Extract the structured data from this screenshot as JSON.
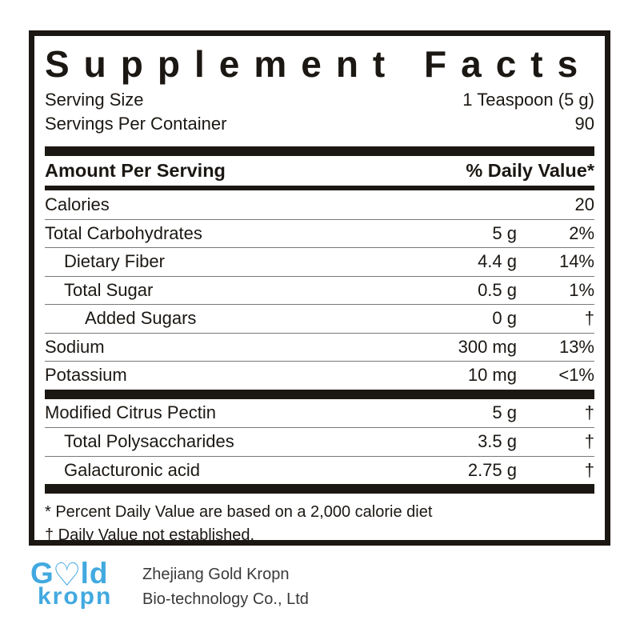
{
  "colors": {
    "ink": "#1b1713",
    "logo_blue": "#42a9e0"
  },
  "panel": {
    "title": "Supplement Facts",
    "serving_size_label": "Serving Size",
    "serving_size_value": "1 Teaspoon (5 g)",
    "servings_label": "Servings Per Container",
    "servings_value": "90",
    "header_left": "Amount Per Serving",
    "header_right": "% Daily Value*",
    "rows": [
      {
        "name": "Calories",
        "amount": "",
        "dv": "20"
      },
      {
        "name": "Total Carbohydrates",
        "amount": "5 g",
        "dv": "2%"
      },
      {
        "name": "Dietary Fiber",
        "amount": "4.4 g",
        "dv": "14%"
      },
      {
        "name": "Total Sugar",
        "amount": "0.5 g",
        "dv": "1%"
      },
      {
        "name": "Added Sugars",
        "amount": "0 g",
        "dv": "†"
      },
      {
        "name": "Sodium",
        "amount": "300 mg",
        "dv": "13%"
      },
      {
        "name": "Potassium",
        "amount": "10 mg",
        "dv": "<1%"
      }
    ],
    "blend_rows": [
      {
        "name": "Modified Citrus Pectin",
        "amount": "5 g",
        "dv": "†"
      },
      {
        "name": "Total Polysaccharides",
        "amount": "3.5 g",
        "dv": "†"
      },
      {
        "name": "Galacturonic acid",
        "amount": "2.75 g",
        "dv": "†"
      }
    ],
    "footnote_1": "* Percent Daily Value are based on a 2,000 calorie diet",
    "footnote_2": "† Daily Value not established."
  },
  "footer": {
    "logo": {
      "g": "G",
      "heart": "♡",
      "ld": "ld",
      "line2": "kropn"
    },
    "company_line1": "Zhejiang Gold Kropn",
    "company_line2": "Bio-technology Co., Ltd"
  }
}
